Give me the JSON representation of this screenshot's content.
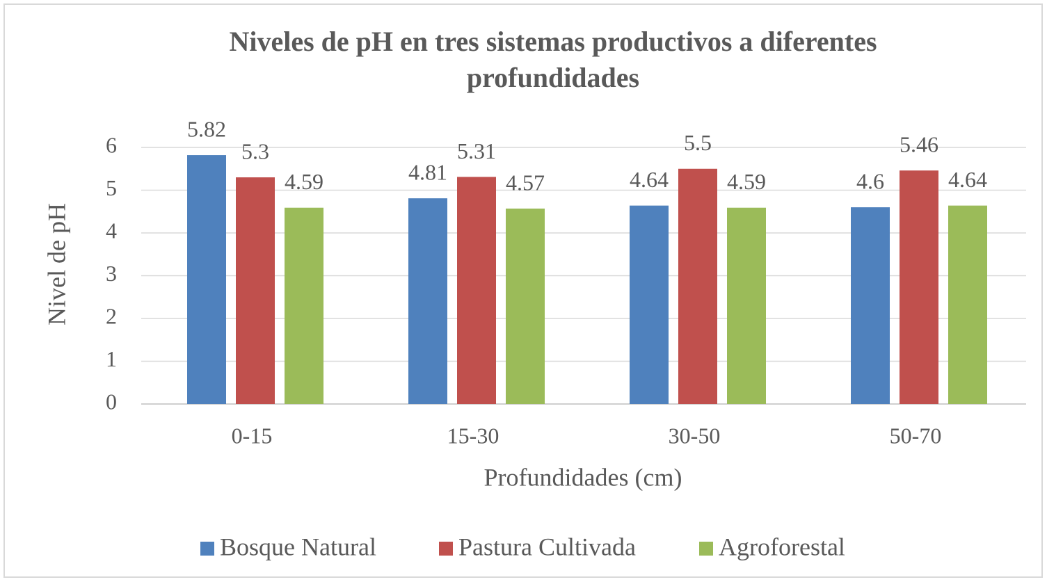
{
  "chart_data": {
    "type": "bar",
    "title": "Niveles de pH en tres sistemas productivos a diferentes profundidades",
    "xlabel": "Profundidades (cm)",
    "ylabel": "Nivel de pH",
    "categories": [
      "0-15",
      "15-30",
      "30-50",
      "50-70"
    ],
    "series": [
      {
        "name": "Bosque Natural",
        "color": "#4f81bd",
        "values": [
          5.82,
          4.81,
          4.64,
          4.6
        ]
      },
      {
        "name": "Pastura Cultivada",
        "color": "#c0504d",
        "values": [
          5.3,
          5.31,
          5.5,
          5.46
        ]
      },
      {
        "name": "Agroforestal",
        "color": "#9bbb59",
        "values": [
          4.59,
          4.57,
          4.59,
          4.64
        ]
      }
    ],
    "ylim": [
      0,
      6
    ],
    "yticks": [
      0,
      1,
      2,
      3,
      4,
      5,
      6
    ],
    "grid": true,
    "legend": "bottom"
  }
}
